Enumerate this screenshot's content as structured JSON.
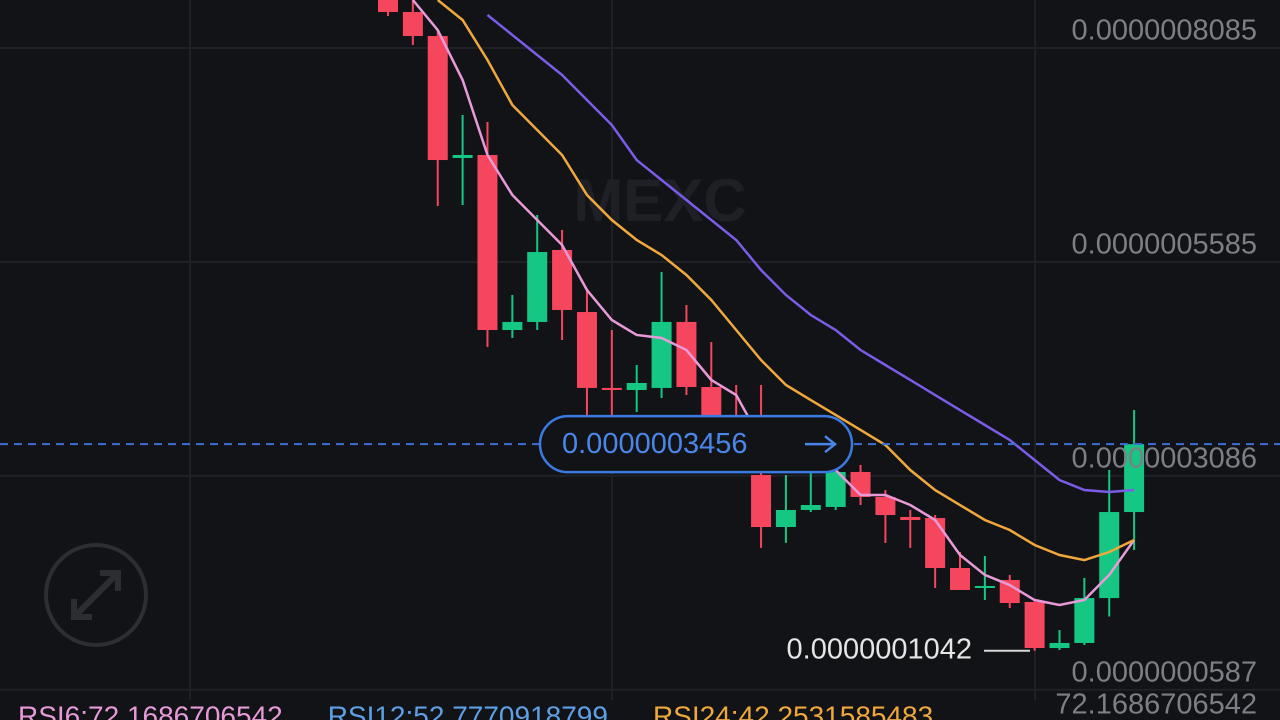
{
  "chart_data": {
    "type": "candlestick",
    "watermark": "MEXC",
    "ylim": [
      2.33e-08,
      8.646e-07
    ],
    "yticks": [
      {
        "value": 8.085e-07,
        "label": "0.0000008085"
      },
      {
        "value": 5.585e-07,
        "label": "0.0000005585"
      },
      {
        "value": 3.086e-07,
        "label": "0.0000003086"
      },
      {
        "value": 5.87e-08,
        "label": "0.0000000587"
      }
    ],
    "grid": true,
    "up_color": "#16c784",
    "down_color": "#f6465d",
    "open": [
      8.646e-07,
      8.506e-07,
      8.225e-07,
      6.8e-07,
      6.835e-07,
      4.79e-07,
      4.884e-07,
      5.725e-07,
      5e-07,
      4.113e-07,
      4.089e-07,
      4.113e-07,
      4.884e-07,
      4.124e-07,
      3.797e-07,
      3.096e-07,
      2.488e-07,
      2.687e-07,
      2.722e-07,
      3.131e-07,
      2.839e-07,
      2.605e-07,
      2.593e-07,
      2.009e-07,
      1.776e-07,
      1.869e-07,
      1.612e-07,
      1.074e-07,
      1.133e-07,
      1.658e-07,
      2.663e-07
    ],
    "high": [
      8.704e-07,
      8.646e-07,
      8.295e-07,
      7.302e-07,
      7.22e-07,
      5.199e-07,
      6.134e-07,
      5.958e-07,
      5.257e-07,
      4.79e-07,
      4.381e-07,
      5.468e-07,
      5.082e-07,
      4.65e-07,
      4.148e-07,
      4.148e-07,
      3.096e-07,
      3.154e-07,
      3.154e-07,
      3.213e-07,
      2.92e-07,
      2.687e-07,
      2.628e-07,
      2.196e-07,
      2.15e-07,
      1.928e-07,
      1.635e-07,
      1.284e-07,
      1.893e-07,
      3.154e-07,
      3.855e-07
    ],
    "low": [
      8.459e-07,
      8.12e-07,
      6.239e-07,
      6.251e-07,
      4.591e-07,
      4.697e-07,
      4.79e-07,
      4.673e-07,
      3.797e-07,
      3.797e-07,
      3.832e-07,
      3.995e-07,
      4.03e-07,
      3.739e-07,
      3.329e-07,
      2.244e-07,
      2.302e-07,
      2.663e-07,
      2.687e-07,
      2.745e-07,
      2.302e-07,
      2.244e-07,
      1.776e-07,
      1.752e-07,
      1.635e-07,
      1.541e-07,
      1.042e-07,
      1.051e-07,
      1.109e-07,
      1.442e-07,
      2.22e-07
    ],
    "close": [
      8.506e-07,
      8.225e-07,
      6.776e-07,
      6.835e-07,
      4.79e-07,
      4.884e-07,
      5.701e-07,
      5.024e-07,
      4.113e-07,
      4.089e-07,
      4.171e-07,
      4.884e-07,
      4.124e-07,
      3.797e-07,
      3.446e-07,
      2.488e-07,
      2.687e-07,
      2.745e-07,
      3.131e-07,
      2.839e-07,
      2.628e-07,
      2.57e-07,
      2.009e-07,
      1.752e-07,
      1.799e-07,
      1.6e-07,
      1.074e-07,
      1.133e-07,
      1.658e-07,
      2.663e-07,
      3.456e-07
    ],
    "lines": [
      {
        "color": "#e89ad8",
        "values": [
          null,
          8.646e-07,
          8.295e-07,
          7.711e-07,
          6.835e-07,
          6.368e-07,
          6.075e-07,
          5.783e-07,
          5.257e-07,
          4.907e-07,
          4.732e-07,
          4.697e-07,
          4.556e-07,
          4.206e-07,
          4.03e-07,
          3.505e-07,
          3.271e-07,
          3.213e-07,
          3.154e-07,
          2.862e-07,
          2.862e-07,
          2.745e-07,
          2.57e-07,
          2.161e-07,
          1.928e-07,
          1.81e-07,
          1.635e-07,
          1.577e-07,
          1.635e-07,
          1.928e-07,
          2.336e-07
        ]
      },
      {
        "color": "#f0a83c",
        "values": [
          null,
          null,
          8.646e-07,
          8.412e-07,
          7.945e-07,
          7.419e-07,
          7.127e-07,
          6.835e-07,
          6.368e-07,
          6.075e-07,
          5.842e-07,
          5.666e-07,
          5.433e-07,
          5.141e-07,
          4.79e-07,
          4.439e-07,
          4.148e-07,
          3.972e-07,
          3.797e-07,
          3.622e-07,
          3.446e-07,
          3.154e-07,
          2.92e-07,
          2.745e-07,
          2.57e-07,
          2.453e-07,
          2.278e-07,
          2.161e-07,
          2.102e-07,
          2.196e-07,
          2.336e-07
        ]
      },
      {
        "color": "#7b5ce6",
        "values": [
          null,
          null,
          null,
          null,
          8.471e-07,
          8.237e-07,
          8.003e-07,
          7.77e-07,
          7.478e-07,
          7.185e-07,
          6.776e-07,
          6.543e-07,
          6.309e-07,
          6.075e-07,
          5.842e-07,
          5.491e-07,
          5.199e-07,
          4.965e-07,
          4.79e-07,
          4.556e-07,
          4.381e-07,
          4.206e-07,
          4.03e-07,
          3.855e-07,
          3.68e-07,
          3.505e-07,
          3.271e-07,
          3.037e-07,
          2.92e-07,
          2.897e-07,
          2.92e-07
        ]
      }
    ],
    "last_price": {
      "value": 3.456e-07,
      "label": "0.0000003456"
    },
    "low_marker": {
      "value": 1.042e-07,
      "label": "0.0000001042"
    },
    "indicators": [
      {
        "label": "RSI6:72.1686706542",
        "color": "#e89ad8"
      },
      {
        "label": "RSI12:52.7770918799",
        "color": "#5ea0e6"
      },
      {
        "label": "RSI24:42.2531585483",
        "color": "#f0a83c"
      }
    ],
    "indicator_axis_label": "72.1686706542"
  }
}
